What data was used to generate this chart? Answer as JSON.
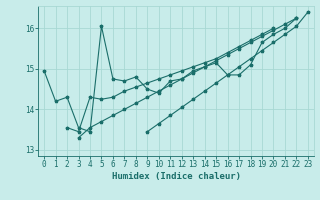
{
  "xlabel": "Humidex (Indice chaleur)",
  "ylabel": "",
  "bg_color": "#c8ecea",
  "grid_color": "#a8d8d4",
  "line_color": "#1a6e6a",
  "xlim": [
    -0.5,
    23.5
  ],
  "ylim": [
    12.85,
    16.55
  ],
  "yticks": [
    13,
    14,
    15,
    16
  ],
  "xticks": [
    0,
    1,
    2,
    3,
    4,
    5,
    6,
    7,
    8,
    9,
    10,
    11,
    12,
    13,
    14,
    15,
    16,
    17,
    18,
    19,
    20,
    21,
    22,
    23
  ],
  "series": [
    [
      14.95,
      14.2,
      14.3,
      13.55,
      13.45,
      16.05,
      14.75,
      14.7,
      14.8,
      14.5,
      14.4,
      14.7,
      14.75,
      14.95,
      15.05,
      15.15,
      14.85,
      14.85,
      15.1,
      15.65,
      15.85,
      16.0,
      16.25
    ],
    [
      13.55,
      13.45,
      14.3,
      14.25,
      14.3,
      14.45,
      14.55,
      14.65,
      14.75,
      14.85,
      14.95,
      15.05,
      15.15,
      15.25,
      15.4,
      15.55,
      15.7,
      15.85,
      16.0
    ],
    [
      13.3,
      13.55,
      13.7,
      13.85,
      14.0,
      14.15,
      14.3,
      14.45,
      14.6,
      14.75,
      14.9,
      15.05,
      15.2,
      15.35,
      15.5,
      15.65,
      15.8,
      15.95,
      16.1,
      16.25
    ],
    [
      13.45,
      13.65,
      13.85,
      14.05,
      14.25,
      14.45,
      14.65,
      14.85,
      15.05,
      15.25,
      15.45,
      15.65,
      15.85,
      16.05,
      16.4
    ]
  ],
  "series_x": [
    [
      0,
      1,
      2,
      3,
      4,
      5,
      6,
      7,
      8,
      9,
      10,
      11,
      12,
      13,
      14,
      15,
      16,
      17,
      18,
      19,
      20,
      21,
      22
    ],
    [
      2,
      3,
      4,
      5,
      6,
      7,
      8,
      9,
      10,
      11,
      12,
      13,
      14,
      15,
      16,
      17,
      18,
      19,
      20
    ],
    [
      3,
      4,
      5,
      6,
      7,
      8,
      9,
      10,
      11,
      12,
      13,
      14,
      15,
      16,
      17,
      18,
      19,
      20,
      21,
      22
    ],
    [
      9,
      10,
      11,
      12,
      13,
      14,
      15,
      16,
      17,
      18,
      19,
      20,
      21,
      22,
      23
    ]
  ]
}
